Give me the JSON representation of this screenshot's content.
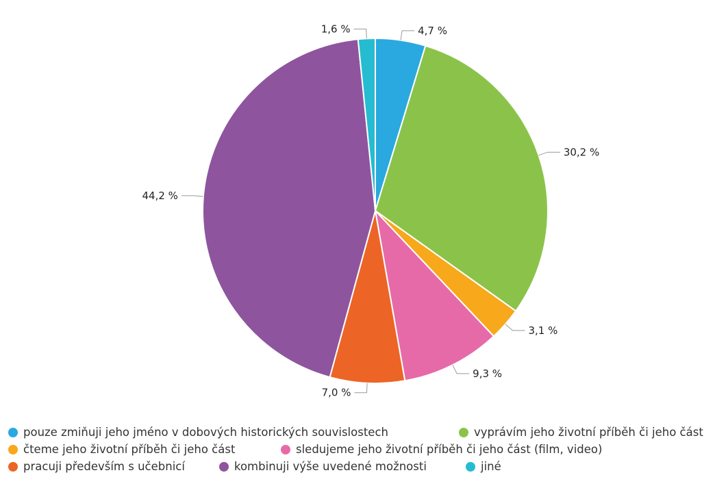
{
  "chart_data": {
    "type": "pie",
    "slices": [
      {
        "label": "pouze zmiňuji jeho jméno v dobových historických souvislostech",
        "value": 4.7,
        "value_label": "4,7 %",
        "color": "#2aa8e0"
      },
      {
        "label": "vyprávím jeho životní příběh či jeho část",
        "value": 30.2,
        "value_label": "30,2 %",
        "color": "#8bc34a"
      },
      {
        "label": "čteme jeho životní příběh či jeho část",
        "value": 3.1,
        "value_label": "3,1 %",
        "color": "#f7a81b"
      },
      {
        "label": "sledujeme jeho životní příběh či jeho část (film, video)",
        "value": 9.3,
        "value_label": "9,3 %",
        "color": "#e76aa8"
      },
      {
        "label": "pracuji především s učebnicí",
        "value": 7.0,
        "value_label": "7,0 %",
        "color": "#ec6526"
      },
      {
        "label": "kombinuji výše uvedené možnosti",
        "value": 44.2,
        "value_label": "44,2 %",
        "color": "#8e559e"
      },
      {
        "label": "jiné",
        "value": 1.6,
        "value_label": "1,6 %",
        "color": "#25bcd1"
      }
    ],
    "legend_placement": "bottom"
  }
}
